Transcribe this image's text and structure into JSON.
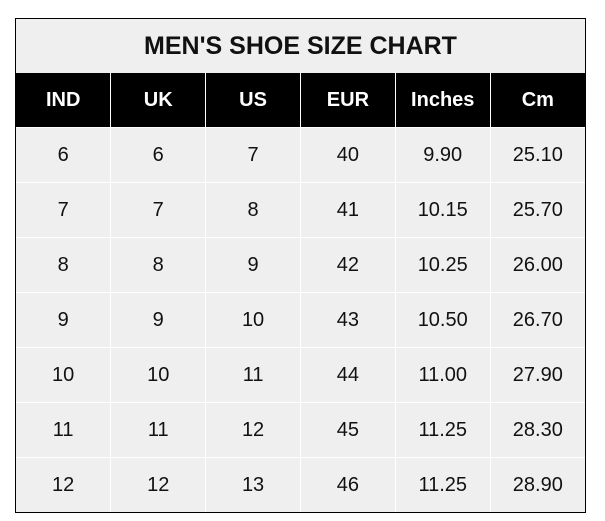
{
  "title": "MEN'S SHOE SIZE CHART",
  "chart_data": {
    "type": "table",
    "columns": [
      "IND",
      "UK",
      "US",
      "EUR",
      "Inches",
      "Cm"
    ],
    "rows": [
      [
        "6",
        "6",
        "7",
        "40",
        "9.90",
        "25.10"
      ],
      [
        "7",
        "7",
        "8",
        "41",
        "10.15",
        "25.70"
      ],
      [
        "8",
        "8",
        "9",
        "42",
        "10.25",
        "26.00"
      ],
      [
        "9",
        "9",
        "10",
        "43",
        "10.50",
        "26.70"
      ],
      [
        "10",
        "10",
        "11",
        "44",
        "11.00",
        "27.90"
      ],
      [
        "11",
        "11",
        "12",
        "45",
        "11.25",
        "28.30"
      ],
      [
        "12",
        "12",
        "13",
        "46",
        "11.25",
        "28.90"
      ]
    ]
  },
  "colors": {
    "header_bg": "#000000",
    "body_bg": "#efefef",
    "grid": "#ffffff"
  }
}
